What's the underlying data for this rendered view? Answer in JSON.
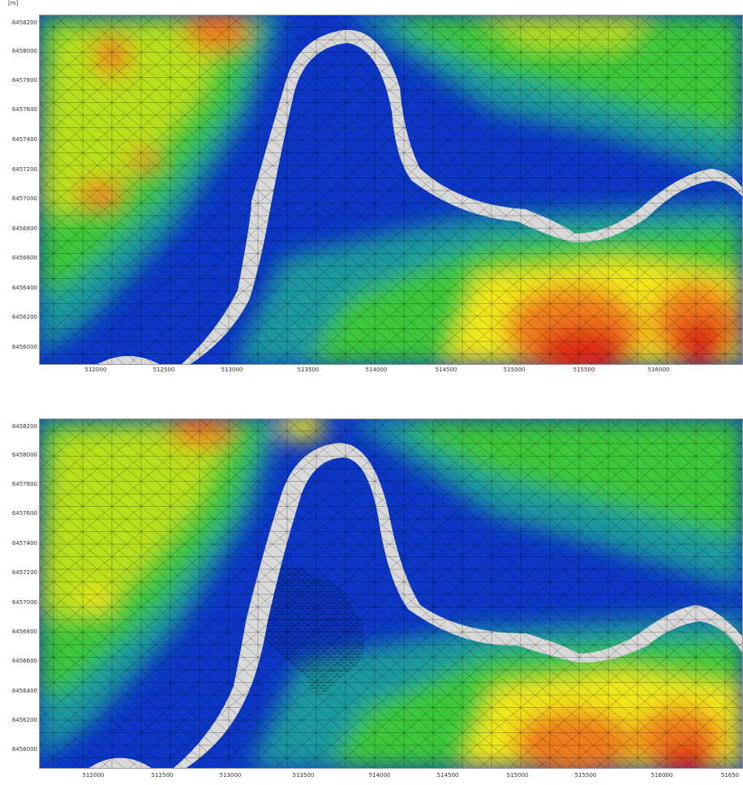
{
  "top_panel": {
    "unit_label": "[m]",
    "y_labels": [
      "6458200",
      "6458000",
      "6457800",
      "6457600",
      "6457400",
      "6457200",
      "6457000",
      "6456800",
      "6456600",
      "6456400",
      "6456200",
      "6456000"
    ],
    "x_labels": [
      "512000",
      "512500",
      "513000",
      "513500",
      "514000",
      "514500",
      "515000",
      "515500",
      "516000"
    ]
  },
  "bottom_panel": {
    "unit_label": "",
    "y_labels": [
      "6458200",
      "6458000",
      "6457800",
      "6457600",
      "6457400",
      "6457200",
      "6457000",
      "6456800",
      "6456600",
      "6456400",
      "6456200",
      "6456000"
    ],
    "x_labels": [
      "512000",
      "512500",
      "513000",
      "513500",
      "514000",
      "514500",
      "515000",
      "515500",
      "516000",
      "51650"
    ]
  },
  "colors": {
    "deep": "#0c36c6",
    "mid_deep": "#1a5fd0",
    "teal": "#1d9a9f",
    "green": "#3dc83a",
    "yellow_green": "#b9e01c",
    "yellow": "#f2e81c",
    "orange": "#f07d1a",
    "red": "#e02a12",
    "river": "#d9d9d9",
    "mesh": "#000000"
  }
}
